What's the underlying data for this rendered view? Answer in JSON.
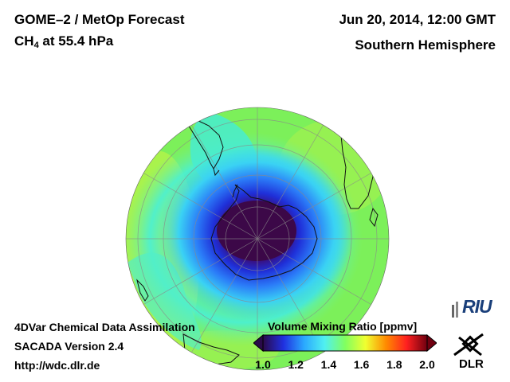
{
  "header": {
    "title": "GOME–2 / MetOp Forecast",
    "species_main": "CH",
    "species_sub": "4",
    "species_rest": " at 55.4 hPa",
    "date": "Jun 20, 2014, 12:00 GMT",
    "hemisphere": "Southern Hemisphere"
  },
  "footer": {
    "line1": "4DVar Chemical Data Assimilation",
    "line2": "SACADA Version 2.4",
    "line3": "http://wdc.dlr.de"
  },
  "colorbar": {
    "title": "Volume Mixing Ratio [ppmv]",
    "min": 1.0,
    "max": 2.0,
    "tick_labels": [
      "1.0",
      "1.2",
      "1.4",
      "1.6",
      "1.8",
      "2.0"
    ],
    "colors": [
      "#2a0a4a",
      "#2030e0",
      "#2aa8ff",
      "#50f0f0",
      "#80ff60",
      "#f0ff30",
      "#ff8a00",
      "#ff2020",
      "#700010"
    ]
  },
  "logos": {
    "riu": "RIU",
    "dlr": "DLR"
  },
  "map": {
    "projection": "orthographic",
    "center": "South Pole",
    "background_value_ppmv": 1.55,
    "vortex_core_value_ppmv": 1.05
  }
}
